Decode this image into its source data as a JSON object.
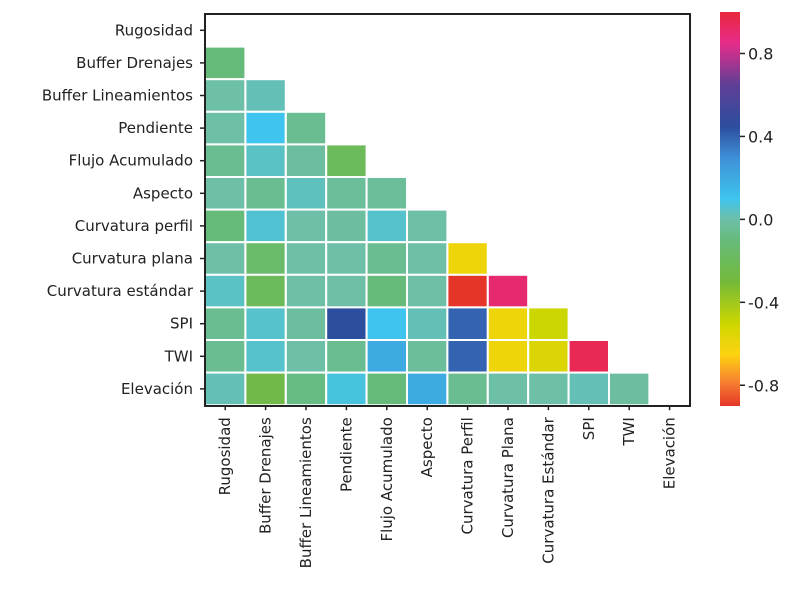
{
  "chart_data": {
    "type": "heatmap",
    "subtype": "lower-triangular correlation matrix",
    "title": "",
    "xlabel": "",
    "ylabel": "",
    "row_labels": [
      "Rugosidad",
      "Buffer Drenajes",
      "Buffer Lineamientos",
      "Pendiente",
      "Flujo Acumulado",
      "Aspecto",
      "Curvatura perfil",
      "Curvatura plana",
      "Curvatura estándar",
      "SPI",
      "TWI",
      "Elevación"
    ],
    "column_labels": [
      "Rugosidad",
      "Buffer Drenajes",
      "Buffer Lineamientos",
      "Pendiente",
      "Flujo Acumulado",
      "Aspecto",
      "Curvatura Perfil",
      "Curvatura Plana",
      "Curvatura Estándar",
      "SPI",
      "TWI",
      "Elevación"
    ],
    "matrix": [
      [],
      [
        -0.1
      ],
      [
        0.0,
        0.02
      ],
      [
        0.0,
        0.1,
        -0.05
      ],
      [
        -0.05,
        0.04,
        -0.02,
        -0.2
      ],
      [
        0.0,
        -0.05,
        0.03,
        -0.03,
        -0.03
      ],
      [
        -0.1,
        0.06,
        0.0,
        -0.02,
        0.05,
        0.0
      ],
      [
        0.0,
        -0.15,
        0.0,
        0.0,
        -0.05,
        0.0,
        -0.6
      ],
      [
        0.04,
        -0.2,
        0.0,
        0.0,
        -0.1,
        0.0,
        -0.9,
        0.9
      ],
      [
        -0.05,
        0.05,
        -0.02,
        0.45,
        0.1,
        0.02,
        0.4,
        -0.6,
        -0.5
      ],
      [
        -0.05,
        0.05,
        0.0,
        -0.05,
        0.2,
        -0.03,
        0.4,
        -0.6,
        -0.55,
        0.95
      ],
      [
        0.02,
        -0.25,
        -0.08,
        0.08,
        -0.1,
        0.2,
        -0.05,
        0.0,
        0.0,
        0.02,
        -0.02
      ]
    ],
    "colorbar": {
      "min": -0.9,
      "max": 1.0,
      "ticks": [
        "0.8",
        "0.4",
        "0.0",
        "-0.4",
        "-0.8"
      ],
      "tick_values": [
        0.8,
        0.4,
        0.0,
        -0.4,
        -0.8
      ],
      "stops": [
        {
          "v": -0.9,
          "color": "#e53528"
        },
        {
          "v": -0.78,
          "color": "#f68330"
        },
        {
          "v": -0.65,
          "color": "#fdd40f"
        },
        {
          "v": -0.5,
          "color": "#ccd600"
        },
        {
          "v": -0.3,
          "color": "#74b93a"
        },
        {
          "v": -0.1,
          "color": "#66bb7a"
        },
        {
          "v": 0.0,
          "color": "#6dbfa8"
        },
        {
          "v": 0.1,
          "color": "#3ec4ee"
        },
        {
          "v": 0.3,
          "color": "#3e8fd6"
        },
        {
          "v": 0.45,
          "color": "#2d4d9e"
        },
        {
          "v": 0.65,
          "color": "#5f3f96"
        },
        {
          "v": 0.85,
          "color": "#e62c8a"
        },
        {
          "v": 1.0,
          "color": "#e9273b"
        }
      ]
    },
    "grid": false,
    "legend": "colorbar-right"
  }
}
